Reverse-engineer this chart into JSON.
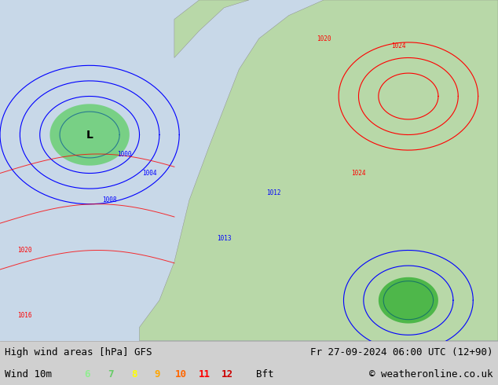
{
  "title_left": "High wind areas [hPa] GFS",
  "title_right": "Fr 27-09-2024 06:00 UTC (12+90)",
  "label_left": "Wind 10m",
  "label_right": "© weatheronline.co.uk",
  "bft_numbers": [
    "6",
    "7",
    "8",
    "9",
    "10",
    "11",
    "12"
  ],
  "bft_colors": [
    "#90ee90",
    "#66cc66",
    "#ffff00",
    "#ffa500",
    "#ff6600",
    "#ff0000",
    "#cc0000"
  ],
  "bft_label": "Bft",
  "bg_color": "#e8f0e8",
  "map_bg": "#d0e8d0",
  "bottom_bar_color": "#d0d0d0",
  "fig_width": 6.34,
  "fig_height": 4.9,
  "dpi": 100,
  "font_size_labels": 9,
  "font_size_bft": 9,
  "font_family": "monospace"
}
